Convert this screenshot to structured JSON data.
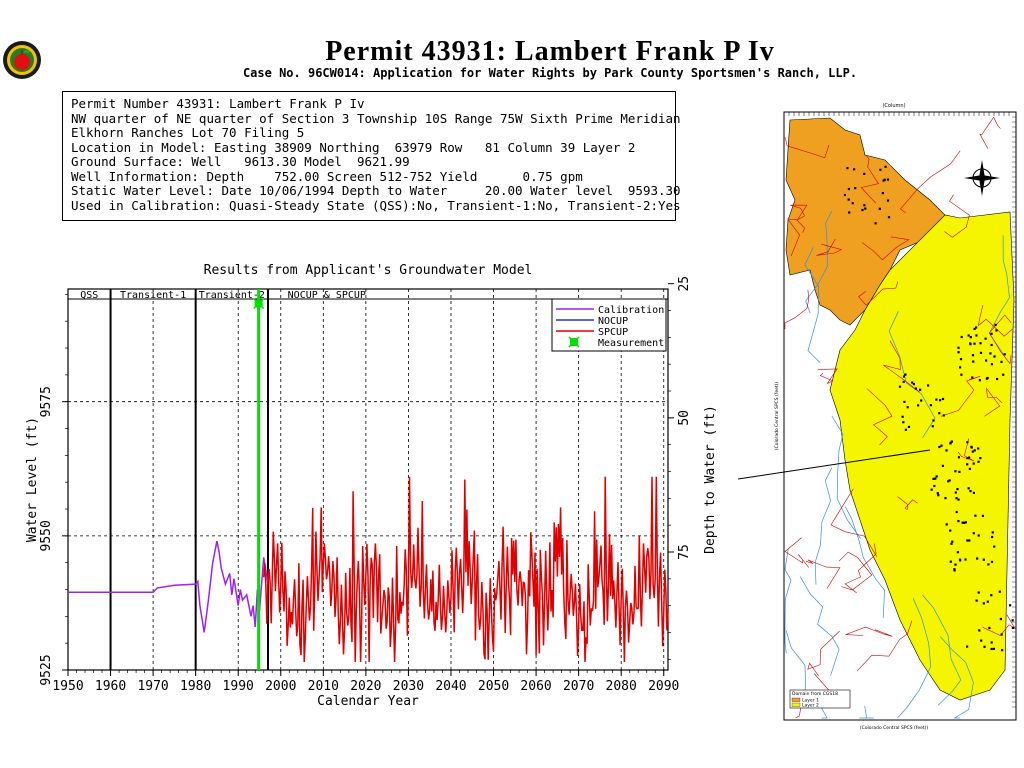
{
  "header": {
    "title": "Permit 43931:  Lambert Frank P Iv",
    "subtitle": "Case No. 96CW014: Application for Water Rights by Park County Sportsmen's Ranch, LLP."
  },
  "info": {
    "lines": [
      "Permit Number 43931: Lambert Frank P Iv",
      "",
      "NW quarter of NE quarter of Section 3 Township 10S Range 75W Sixth Prime Meridian",
      "Elkhorn Ranches Lot 70 Filing 5",
      "Location in Model: Easting 38909 Northing  63979 Row   81 Column 39 Layer 2",
      "Ground Surface: Well   9613.30 Model  9621.99",
      "Well Information: Depth    752.00 Screen 512-752 Yield      0.75 gpm",
      "Static Water Level: Date 10/06/1994 Depth to Water     20.00 Water level  9593.30",
      "Used in Calibration: Quasi-Steady State (QSS):No, Transient-1:No, Transient-2:Yes"
    ]
  },
  "colors": {
    "calibration": "#a020f0",
    "nocup": "#2a30c8",
    "spcup": "#e00000",
    "measurement": "#00e000",
    "layer1": "#f0a020",
    "layer2": "#f5f500"
  },
  "map": {
    "column_label": "(Column)",
    "legend_title": "Domain from CGS18",
    "legend_items": [
      "Layer 1",
      "Layer 2"
    ],
    "xlabel": "(Colorado Central SPCS (feet))",
    "ylabel": "(Colorado Central SPCS (feet))"
  },
  "chart_data": {
    "type": "line",
    "title": "Results from Applicant's Groundwater Model",
    "xlabel": "Calendar Year",
    "ylabel": "Water Level (ft)",
    "y2label": "Depth to Water (ft)",
    "xlim": [
      1950,
      2091
    ],
    "ylim": [
      9525,
      9596
    ],
    "xticks": [
      "1950",
      "1960",
      "1970",
      "1980",
      "1990",
      "2000",
      "2010",
      "2020",
      "2030",
      "2040",
      "2050",
      "2060",
      "2070",
      "2080",
      "2090"
    ],
    "yticks": [
      "9525",
      "9550",
      "9575"
    ],
    "y2ticks": [
      "25",
      "50",
      "75"
    ],
    "y2_ground_surface": 9621.99,
    "grid": true,
    "legend_position": "top-right",
    "periods": [
      {
        "label": "QSS",
        "start": 1950,
        "end": 1960
      },
      {
        "label": "Transient-1",
        "start": 1960,
        "end": 1980
      },
      {
        "label": "Transient-2",
        "start": 1980,
        "end": 1997
      },
      {
        "label": "NOCUP  &  SPCUP",
        "start": 1997,
        "end": 2091
      }
    ],
    "period_dividers": [
      1960,
      1980,
      1997
    ],
    "series": [
      {
        "name": "Calibration",
        "color": "#a020f0",
        "x": [
          1950,
          1970,
          1971,
          1975,
          1980,
          1980.5,
          1981,
          1982,
          1983,
          1984,
          1985,
          1985.5,
          1986,
          1987,
          1988,
          1988.5,
          1989,
          1990,
          1990.5,
          1991,
          1992,
          1993,
          1993.5,
          1994,
          1994.5,
          1995,
          1996,
          1997
        ],
        "y": [
          9539.5,
          9539.5,
          9540.3,
          9540.8,
          9541,
          9541.5,
          9537,
          9532,
          9538,
          9545,
          9549,
          9547,
          9544,
          9541,
          9543,
          9539,
          9542,
          9537,
          9540,
          9538,
          9539,
          9535,
          9537,
          9533,
          9540,
          9536,
          9546,
          9541
        ]
      },
      {
        "name": "NOCUP",
        "color": "#2a30c8",
        "x": [],
        "y": []
      },
      {
        "name": "SPCUP",
        "color": "#e00000",
        "x": [],
        "y": []
      },
      {
        "name": "Measurement",
        "color": "#00e000",
        "x": [
          1994.8
        ],
        "y": [
          9593.3
        ]
      }
    ]
  }
}
